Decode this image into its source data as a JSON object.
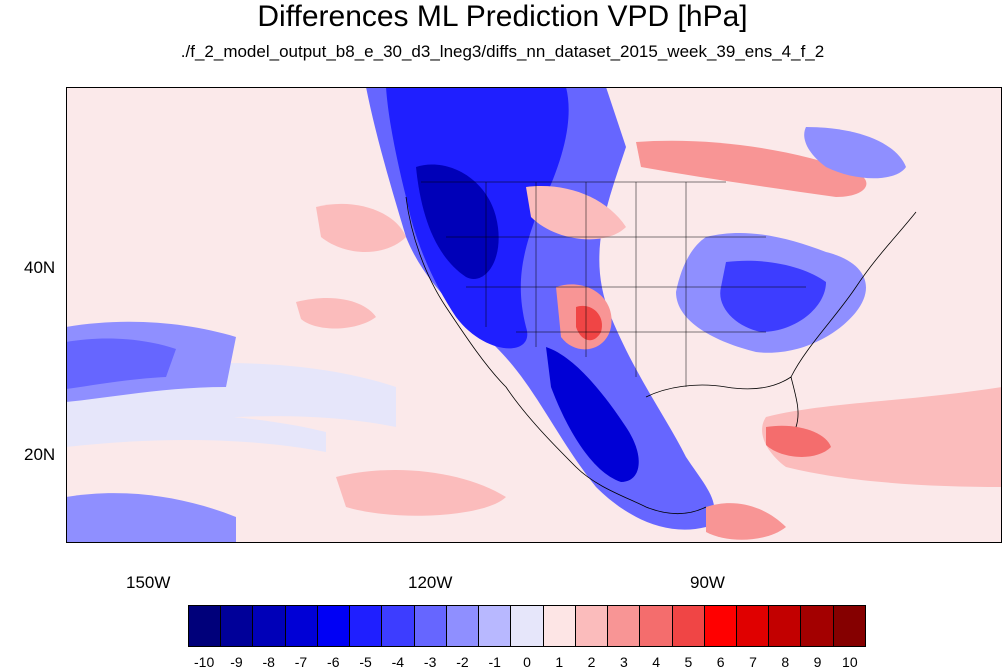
{
  "title": "Differences ML Prediction VPD [hPa]",
  "subtitle": "./f_2_model_output_b8_e_30_d3_lneg3/diffs_nn_dataset_2015_week_39_ens_4_f_2",
  "lat_ticks": [
    "40N",
    "20N"
  ],
  "lon_ticks": [
    "150W",
    "120W",
    "90W"
  ],
  "colorbar": {
    "labels": [
      "-10",
      "-9",
      "-8",
      "-7",
      "-6",
      "-5",
      "-4",
      "-3",
      "-2",
      "-1",
      "0",
      "1",
      "2",
      "3",
      "4",
      "5",
      "6",
      "7",
      "8",
      "9",
      "10"
    ],
    "colors": [
      "#00007a",
      "#000099",
      "#0000b8",
      "#0000d6",
      "#0000f5",
      "#1f1fff",
      "#3d3dff",
      "#6666ff",
      "#8f8fff",
      "#b8b8ff",
      "#e6e6fa",
      "#fde5e5",
      "#fbbcbc",
      "#f89595",
      "#f46d6d",
      "#f04545",
      "#ff0000",
      "#e00000",
      "#c20000",
      "#a30000",
      "#850000"
    ]
  }
}
